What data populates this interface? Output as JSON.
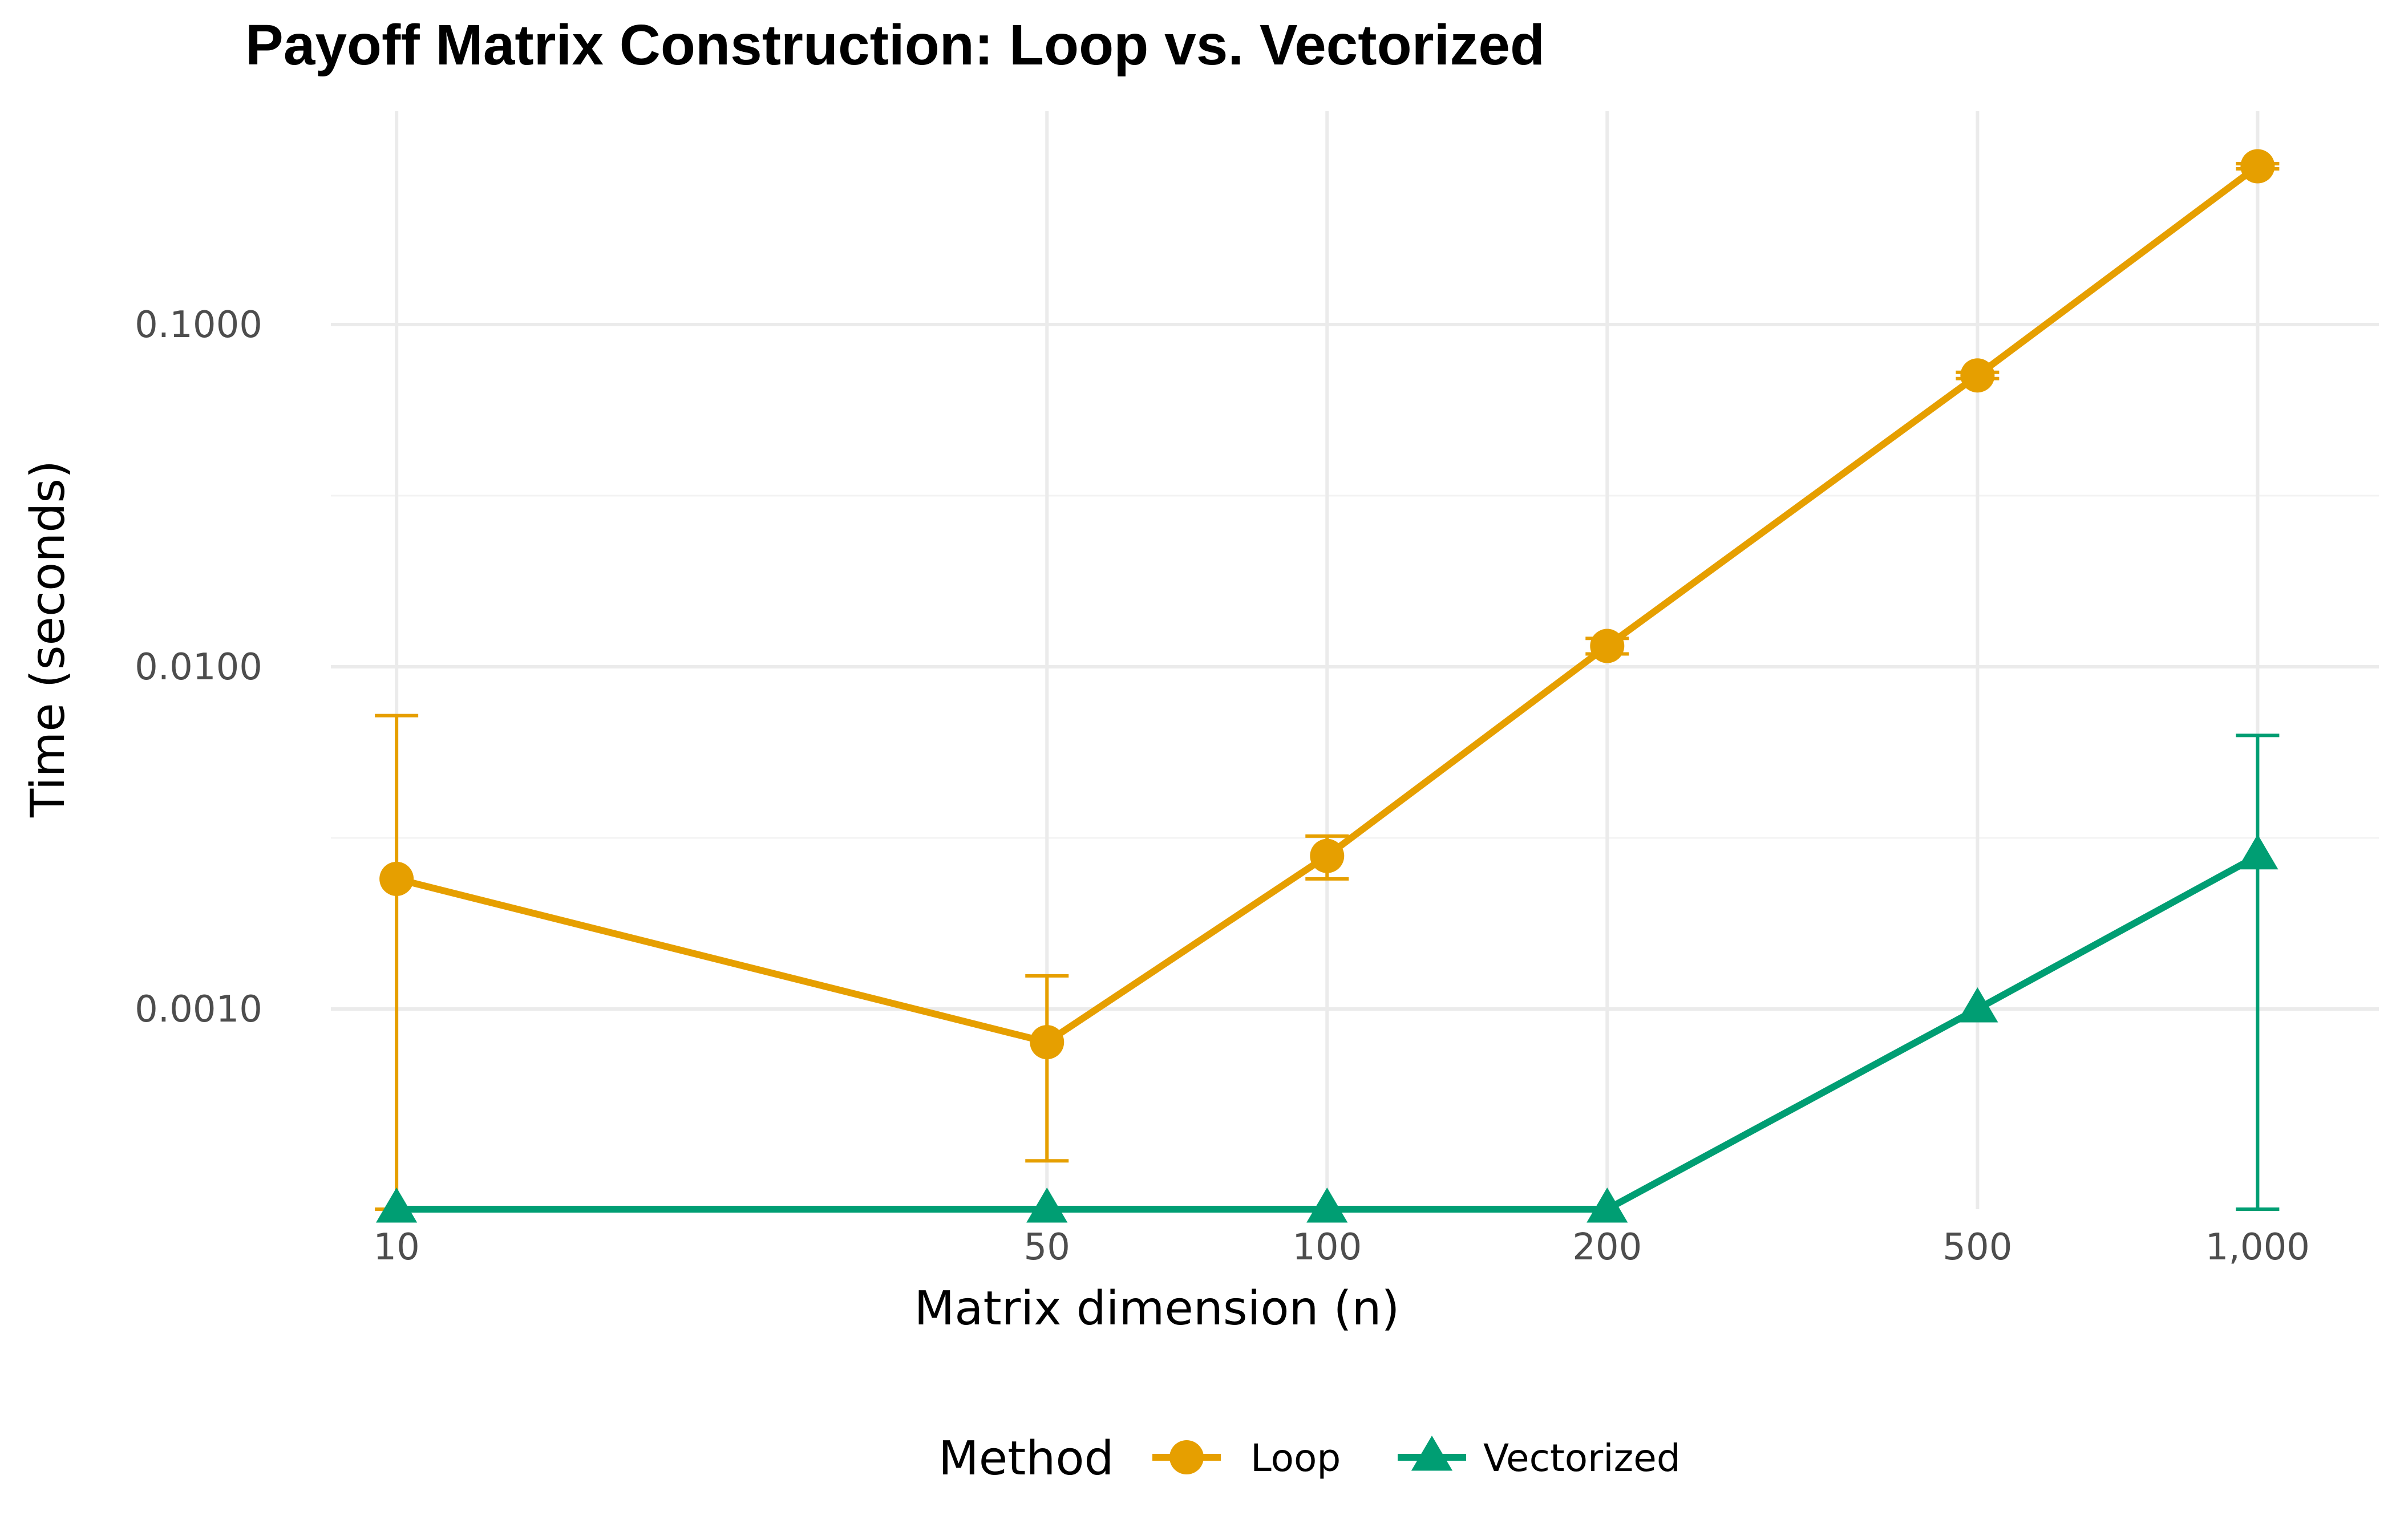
{
  "chart_data": {
    "type": "line",
    "title": "Payoff Matrix Construction: Loop vs. Vectorized",
    "xlabel": "Matrix dimension (n)",
    "ylabel": "Time (seconds)",
    "x_scale": "log",
    "y_scale": "log",
    "x": [
      10,
      50,
      100,
      200,
      500,
      1000
    ],
    "x_tick_labels": [
      "10",
      "50",
      "100",
      "200",
      "500",
      "1,000"
    ],
    "y_ticks": [
      0.001,
      0.01,
      0.1
    ],
    "y_tick_labels": [
      "0.0010",
      "0.0100",
      "0.1000"
    ],
    "xlim": [
      8.5,
      1350
    ],
    "ylim": [
      0.00026,
      0.42
    ],
    "grid": true,
    "legend": {
      "title": "Method",
      "position": "bottom"
    },
    "series": [
      {
        "name": "Loop",
        "color": "#E69F00",
        "marker": "circle",
        "values": [
          0.0024,
          0.0008,
          0.0028,
          0.0115,
          0.071,
          0.29
        ],
        "error_low": [
          0.00026,
          0.00036,
          0.0024,
          0.0109,
          0.0695,
          0.285
        ],
        "error_high": [
          0.0072,
          0.00125,
          0.0032,
          0.0121,
          0.0725,
          0.295
        ]
      },
      {
        "name": "Vectorized",
        "color": "#009E73",
        "marker": "triangle",
        "values": [
          0.00026,
          0.00026,
          0.00026,
          0.00026,
          0.001,
          0.0028
        ],
        "error_low": [
          null,
          null,
          null,
          null,
          null,
          0.00026
        ],
        "error_high": [
          null,
          null,
          null,
          null,
          null,
          0.0063
        ]
      }
    ]
  }
}
